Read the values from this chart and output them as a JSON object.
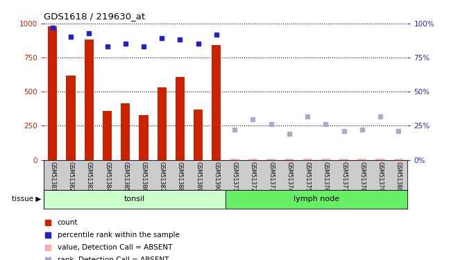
{
  "title": "GDS1618 / 219630_at",
  "samples": [
    "GSM51381",
    "GSM51382",
    "GSM51383",
    "GSM51384",
    "GSM51385",
    "GSM51386",
    "GSM51387",
    "GSM51388",
    "GSM51389",
    "GSM51390",
    "GSM51371",
    "GSM51372",
    "GSM51373",
    "GSM51374",
    "GSM51375",
    "GSM51376",
    "GSM51377",
    "GSM51378",
    "GSM51379",
    "GSM51380"
  ],
  "bar_values": [
    980,
    620,
    880,
    360,
    415,
    330,
    530,
    610,
    370,
    840,
    null,
    null,
    null,
    null,
    null,
    null,
    null,
    null,
    null,
    null
  ],
  "bar_values_absent": [
    null,
    null,
    null,
    null,
    null,
    null,
    null,
    null,
    null,
    null,
    8,
    8,
    8,
    8,
    8,
    8,
    8,
    8,
    8,
    8
  ],
  "rank_values": [
    97,
    90,
    93,
    83,
    85,
    83,
    89,
    88,
    85,
    92,
    null,
    null,
    null,
    null,
    null,
    null,
    null,
    null,
    null,
    null
  ],
  "rank_values_absent": [
    null,
    null,
    null,
    null,
    null,
    null,
    null,
    null,
    null,
    null,
    22,
    30,
    26,
    19,
    32,
    26,
    21,
    22,
    32,
    21
  ],
  "tonsil_label": "tonsil",
  "lymph_label": "lymph node",
  "tissue_label": "tissue",
  "bar_color": "#cc2200",
  "bar_absent_color": "#ffaaaa",
  "rank_color": "#2222cc",
  "rank_absent_color": "#aaaacc",
  "tonsil_bg": "#ccffcc",
  "lymph_bg": "#66ee66",
  "tick_bg": "#cccccc",
  "ylim_left": [
    0,
    1000
  ],
  "ylim_right": [
    0,
    100
  ],
  "yticks_left": [
    0,
    250,
    500,
    750,
    1000
  ],
  "yticks_right": [
    0,
    25,
    50,
    75,
    100
  ],
  "legend_items": [
    {
      "label": "count",
      "color": "#cc2200"
    },
    {
      "label": "percentile rank within the sample",
      "color": "#2222cc"
    },
    {
      "label": "value, Detection Call = ABSENT",
      "color": "#ffaaaa"
    },
    {
      "label": "rank, Detection Call = ABSENT",
      "color": "#aaaacc"
    }
  ]
}
